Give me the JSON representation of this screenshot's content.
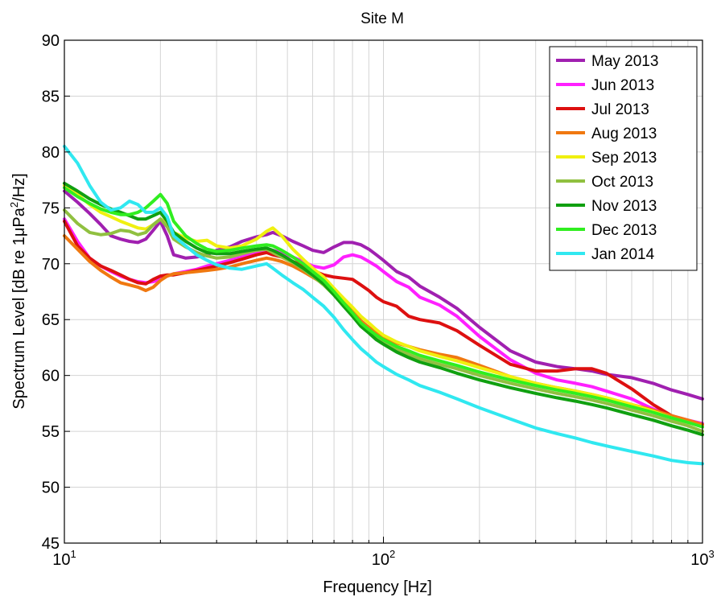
{
  "chart_data": {
    "type": "line",
    "title": "Site M",
    "xlabel": "Frequency [Hz]",
    "ylabel_prefix": "Spectrum Level [dB re 1",
    "ylabel_mu": "μ",
    "ylabel_pa": "Pa",
    "ylabel_sup": "2",
    "ylabel_suffix": "/Hz]",
    "xscale": "log",
    "xlim": [
      10,
      1000
    ],
    "ylim": [
      45,
      90
    ],
    "grid": true,
    "legend_position": "top-right",
    "x_ticks": [
      {
        "value": 10,
        "base": "10",
        "exp": "1"
      },
      {
        "value": 100,
        "base": "10",
        "exp": "2"
      },
      {
        "value": 1000,
        "base": "10",
        "exp": "3"
      }
    ],
    "y_ticks": [
      {
        "value": 45,
        "label": "45"
      },
      {
        "value": 50,
        "label": "50"
      },
      {
        "value": 55,
        "label": "55"
      },
      {
        "value": 60,
        "label": "60"
      },
      {
        "value": 65,
        "label": "65"
      },
      {
        "value": 70,
        "label": "70"
      },
      {
        "value": 75,
        "label": "75"
      },
      {
        "value": 80,
        "label": "80"
      },
      {
        "value": 85,
        "label": "85"
      },
      {
        "value": 90,
        "label": "90"
      }
    ],
    "x": [
      10,
      11,
      12,
      13,
      14,
      15,
      16,
      17,
      18,
      19,
      20,
      21,
      22,
      24,
      26,
      28,
      30,
      33,
      36,
      40,
      43,
      45,
      48,
      52,
      56,
      60,
      65,
      70,
      75,
      80,
      85,
      90,
      95,
      100,
      110,
      120,
      130,
      150,
      170,
      200,
      250,
      300,
      350,
      400,
      450,
      500,
      600,
      700,
      800,
      900,
      1000
    ],
    "series": [
      {
        "name": "May 2013",
        "color": "#a020b0",
        "values": [
          76.5,
          75.5,
          74.5,
          73.5,
          72.5,
          72.2,
          72.0,
          71.9,
          72.2,
          73.0,
          73.8,
          72.5,
          70.8,
          70.5,
          70.6,
          70.8,
          71.2,
          71.5,
          72.0,
          72.4,
          72.6,
          72.8,
          72.5,
          72.0,
          71.6,
          71.2,
          71.0,
          71.5,
          71.9,
          71.9,
          71.7,
          71.3,
          70.8,
          70.3,
          69.3,
          68.8,
          68.0,
          67.0,
          66.0,
          64.3,
          62.2,
          61.2,
          60.8,
          60.6,
          60.4,
          60.1,
          59.8,
          59.3,
          58.7,
          58.3,
          57.9
        ]
      },
      {
        "name": "Jun 2013",
        "color": "#ff20ff",
        "values": [
          74.0,
          72.0,
          70.5,
          69.8,
          69.3,
          68.9,
          68.6,
          68.4,
          68.3,
          68.4,
          68.6,
          68.9,
          69.1,
          69.3,
          69.5,
          69.8,
          70.0,
          70.3,
          70.6,
          71.0,
          71.2,
          71.2,
          71.0,
          70.6,
          70.2,
          69.8,
          69.6,
          69.9,
          70.6,
          70.8,
          70.6,
          70.2,
          69.8,
          69.3,
          68.4,
          67.9,
          67.0,
          66.3,
          65.3,
          63.5,
          61.4,
          60.2,
          59.6,
          59.3,
          59.0,
          58.6,
          57.9,
          57.0,
          56.4,
          56.0,
          55.7
        ]
      },
      {
        "name": "Jul 2013",
        "color": "#dd1010",
        "values": [
          73.8,
          71.6,
          70.5,
          69.8,
          69.4,
          69.0,
          68.6,
          68.3,
          68.2,
          68.6,
          68.9,
          69.0,
          69.0,
          69.2,
          69.4,
          69.6,
          69.8,
          70.1,
          70.4,
          70.8,
          71.0,
          70.8,
          70.6,
          70.2,
          69.8,
          69.4,
          69.0,
          68.8,
          68.7,
          68.6,
          68.1,
          67.6,
          67.0,
          66.6,
          66.2,
          65.3,
          65.0,
          64.7,
          64.0,
          62.7,
          61.0,
          60.4,
          60.4,
          60.6,
          60.6,
          60.2,
          58.8,
          57.4,
          56.4,
          55.9,
          55.6
        ]
      },
      {
        "name": "Aug 2013",
        "color": "#f07810",
        "values": [
          72.5,
          71.3,
          70.2,
          69.4,
          68.8,
          68.3,
          68.1,
          67.9,
          67.6,
          67.9,
          68.5,
          68.9,
          69.1,
          69.2,
          69.3,
          69.4,
          69.5,
          69.7,
          70.0,
          70.3,
          70.5,
          70.4,
          70.2,
          69.8,
          69.3,
          68.8,
          68.2,
          67.4,
          66.6,
          65.8,
          64.9,
          64.3,
          63.8,
          63.4,
          62.9,
          62.6,
          62.3,
          61.9,
          61.6,
          60.9,
          59.9,
          59.3,
          58.9,
          58.6,
          58.3,
          58.0,
          57.4,
          56.9,
          56.4,
          56.0,
          55.6
        ]
      },
      {
        "name": "Sep 2013",
        "color": "#f0f010",
        "values": [
          77.0,
          76.2,
          75.3,
          74.6,
          74.2,
          73.8,
          73.5,
          73.2,
          73.1,
          73.5,
          74.0,
          73.6,
          72.8,
          72.3,
          72.0,
          72.1,
          71.6,
          71.4,
          71.6,
          72.2,
          72.9,
          73.2,
          72.5,
          71.3,
          70.4,
          69.6,
          68.8,
          67.8,
          66.9,
          66.1,
          65.3,
          64.7,
          64.1,
          63.6,
          63.0,
          62.6,
          62.2,
          61.7,
          61.3,
          60.7,
          59.9,
          59.3,
          58.9,
          58.6,
          58.3,
          58.0,
          57.4,
          56.8,
          56.2,
          55.8,
          55.4
        ]
      },
      {
        "name": "Oct 2013",
        "color": "#90c040",
        "values": [
          74.8,
          73.6,
          72.8,
          72.6,
          72.7,
          73.0,
          72.9,
          72.6,
          72.8,
          73.5,
          74.0,
          73.3,
          72.2,
          71.5,
          71.0,
          70.7,
          70.5,
          70.6,
          70.9,
          71.2,
          71.3,
          71.0,
          70.6,
          70.1,
          69.5,
          68.9,
          68.1,
          67.2,
          66.3,
          65.5,
          64.7,
          64.1,
          63.5,
          63.0,
          62.4,
          61.9,
          61.5,
          61.0,
          60.6,
          60.0,
          59.3,
          58.8,
          58.4,
          58.1,
          57.8,
          57.5,
          56.9,
          56.4,
          55.9,
          55.5,
          55.0
        ]
      },
      {
        "name": "Nov 2013",
        "color": "#10a010",
        "values": [
          77.2,
          76.5,
          75.8,
          75.3,
          74.9,
          74.6,
          74.3,
          74.0,
          74.0,
          74.3,
          74.6,
          73.8,
          72.8,
          72.0,
          71.4,
          71.0,
          70.9,
          70.9,
          71.1,
          71.3,
          71.4,
          71.2,
          70.8,
          70.2,
          69.6,
          69.0,
          68.2,
          67.2,
          66.2,
          65.3,
          64.4,
          63.8,
          63.2,
          62.8,
          62.1,
          61.6,
          61.2,
          60.7,
          60.2,
          59.6,
          58.9,
          58.4,
          58.0,
          57.7,
          57.4,
          57.1,
          56.5,
          56.0,
          55.5,
          55.1,
          54.7
        ]
      },
      {
        "name": "Dec 2013",
        "color": "#30ee20",
        "values": [
          76.8,
          76.0,
          75.4,
          74.9,
          74.6,
          74.4,
          74.4,
          74.6,
          75.0,
          75.6,
          76.2,
          75.4,
          73.8,
          72.5,
          71.8,
          71.3,
          71.1,
          71.2,
          71.4,
          71.6,
          71.7,
          71.6,
          71.2,
          70.6,
          70.0,
          69.3,
          68.5,
          67.5,
          66.5,
          65.6,
          64.7,
          64.1,
          63.6,
          63.2,
          62.6,
          62.2,
          61.8,
          61.3,
          60.9,
          60.3,
          59.6,
          59.1,
          58.7,
          58.4,
          58.1,
          57.8,
          57.2,
          56.7,
          56.2,
          55.8,
          55.4
        ]
      },
      {
        "name": "Jan 2014",
        "color": "#30e8f0",
        "values": [
          80.5,
          79.0,
          77.0,
          75.5,
          74.8,
          75.0,
          75.6,
          75.3,
          74.6,
          74.6,
          75.0,
          74.2,
          72.5,
          71.6,
          70.8,
          70.3,
          69.9,
          69.6,
          69.5,
          69.8,
          70.0,
          69.6,
          69.0,
          68.3,
          67.7,
          67.0,
          66.2,
          65.2,
          64.1,
          63.2,
          62.4,
          61.8,
          61.2,
          60.8,
          60.1,
          59.6,
          59.1,
          58.5,
          57.9,
          57.1,
          56.1,
          55.3,
          54.8,
          54.4,
          54.0,
          53.7,
          53.2,
          52.8,
          52.4,
          52.2,
          52.1
        ]
      }
    ]
  }
}
